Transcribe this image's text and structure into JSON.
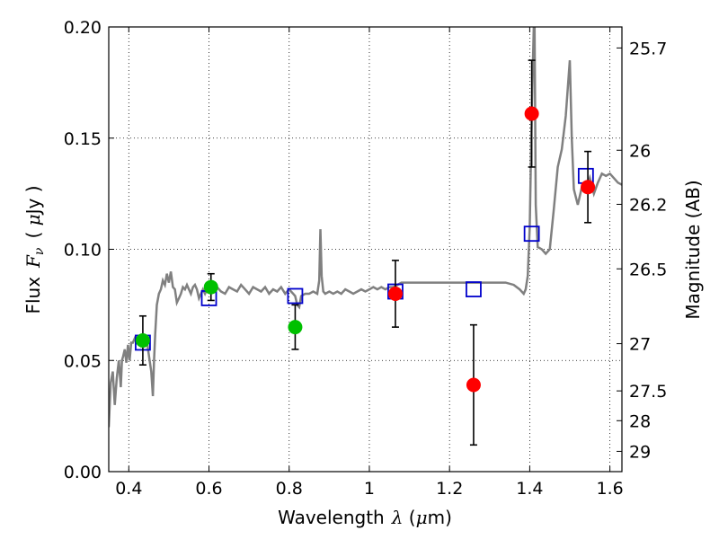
{
  "chart_data": {
    "type": "scatter",
    "title": "",
    "xlabel": {
      "prefix": "Wavelength",
      "symbol": "λ",
      "unit_open": " (",
      "unit_mu": "μ",
      "unit_rest": "m)"
    },
    "ylabel": {
      "prefix": "Flux",
      "symbol": "F",
      "sub": "ν",
      "unit_open": "( ",
      "unit_mu": "μ",
      "unit_rest": "Jy )"
    },
    "y2label": "Magnitude (AB)",
    "xlim": [
      0.35,
      1.63
    ],
    "ylim": [
      0.0,
      0.2
    ],
    "grid": true,
    "grid_style": "dotted",
    "x_ticks": [
      {
        "value": 0.4,
        "label": "0.4"
      },
      {
        "value": 0.6,
        "label": "0.6"
      },
      {
        "value": 0.8,
        "label": "0.8"
      },
      {
        "value": 1.0,
        "label": "1"
      },
      {
        "value": 1.2,
        "label": "1.2"
      },
      {
        "value": 1.4,
        "label": "1.4"
      },
      {
        "value": 1.6,
        "label": "1.6"
      }
    ],
    "y_ticks": [
      {
        "value": 0.0,
        "label": "0.00"
      },
      {
        "value": 0.05,
        "label": "0.05"
      },
      {
        "value": 0.1,
        "label": "0.10"
      },
      {
        "value": 0.15,
        "label": "0.15"
      },
      {
        "value": 0.2,
        "label": "0.20"
      }
    ],
    "y2_ticks": [
      {
        "mag": 25.7,
        "label": "25.7"
      },
      {
        "mag": 26.0,
        "label": "26"
      },
      {
        "mag": 26.2,
        "label": "26.2"
      },
      {
        "mag": 26.5,
        "label": "26.5"
      },
      {
        "mag": 27.0,
        "label": "27"
      },
      {
        "mag": 27.5,
        "label": "27.5"
      },
      {
        "mag": 28.0,
        "label": "28"
      },
      {
        "mag": 29.0,
        "label": "29"
      }
    ],
    "colors": {
      "model_line": "#808080",
      "model_squares": "#0000cc",
      "green_points": "#00c000",
      "red_points": "#ff0000",
      "error_bars": "#000000"
    },
    "series": [
      {
        "kind": "line",
        "points": [
          [
            0.35,
            0.02
          ],
          [
            0.355,
            0.04
          ],
          [
            0.36,
            0.045
          ],
          [
            0.365,
            0.03
          ],
          [
            0.37,
            0.042
          ],
          [
            0.375,
            0.05
          ],
          [
            0.38,
            0.038
          ],
          [
            0.383,
            0.05
          ],
          [
            0.386,
            0.052
          ],
          [
            0.39,
            0.055
          ],
          [
            0.394,
            0.049
          ],
          [
            0.398,
            0.057
          ],
          [
            0.402,
            0.05
          ],
          [
            0.406,
            0.058
          ],
          [
            0.41,
            0.058
          ],
          [
            0.415,
            0.06
          ],
          [
            0.42,
            0.058
          ],
          [
            0.425,
            0.059
          ],
          [
            0.43,
            0.057
          ],
          [
            0.435,
            0.06
          ],
          [
            0.44,
            0.056
          ],
          [
            0.445,
            0.06
          ],
          [
            0.448,
            0.055
          ],
          [
            0.452,
            0.05
          ],
          [
            0.456,
            0.045
          ],
          [
            0.46,
            0.034
          ],
          [
            0.463,
            0.05
          ],
          [
            0.466,
            0.062
          ],
          [
            0.47,
            0.075
          ],
          [
            0.475,
            0.08
          ],
          [
            0.48,
            0.082
          ],
          [
            0.485,
            0.086
          ],
          [
            0.49,
            0.084
          ],
          [
            0.495,
            0.089
          ],
          [
            0.5,
            0.085
          ],
          [
            0.505,
            0.09
          ],
          [
            0.51,
            0.083
          ],
          [
            0.515,
            0.082
          ],
          [
            0.52,
            0.076
          ],
          [
            0.525,
            0.078
          ],
          [
            0.53,
            0.08
          ],
          [
            0.535,
            0.083
          ],
          [
            0.54,
            0.082
          ],
          [
            0.545,
            0.084
          ],
          [
            0.55,
            0.082
          ],
          [
            0.555,
            0.08
          ],
          [
            0.56,
            0.083
          ],
          [
            0.565,
            0.084
          ],
          [
            0.57,
            0.082
          ],
          [
            0.575,
            0.078
          ],
          [
            0.58,
            0.08
          ],
          [
            0.585,
            0.082
          ],
          [
            0.59,
            0.08
          ],
          [
            0.595,
            0.082
          ],
          [
            0.6,
            0.081
          ],
          [
            0.61,
            0.082
          ],
          [
            0.62,
            0.083
          ],
          [
            0.63,
            0.081
          ],
          [
            0.64,
            0.08
          ],
          [
            0.65,
            0.083
          ],
          [
            0.66,
            0.082
          ],
          [
            0.67,
            0.081
          ],
          [
            0.68,
            0.084
          ],
          [
            0.69,
            0.082
          ],
          [
            0.7,
            0.08
          ],
          [
            0.71,
            0.083
          ],
          [
            0.72,
            0.082
          ],
          [
            0.73,
            0.081
          ],
          [
            0.74,
            0.083
          ],
          [
            0.75,
            0.08
          ],
          [
            0.76,
            0.082
          ],
          [
            0.77,
            0.081
          ],
          [
            0.78,
            0.083
          ],
          [
            0.79,
            0.08
          ],
          [
            0.8,
            0.082
          ],
          [
            0.81,
            0.08
          ],
          [
            0.815,
            0.079
          ],
          [
            0.82,
            0.075
          ],
          [
            0.825,
            0.074
          ],
          [
            0.83,
            0.079
          ],
          [
            0.84,
            0.08
          ],
          [
            0.85,
            0.08
          ],
          [
            0.86,
            0.081
          ],
          [
            0.87,
            0.08
          ],
          [
            0.875,
            0.086
          ],
          [
            0.878,
            0.109
          ],
          [
            0.881,
            0.088
          ],
          [
            0.885,
            0.081
          ],
          [
            0.89,
            0.08
          ],
          [
            0.9,
            0.081
          ],
          [
            0.91,
            0.08
          ],
          [
            0.92,
            0.081
          ],
          [
            0.93,
            0.08
          ],
          [
            0.94,
            0.082
          ],
          [
            0.95,
            0.081
          ],
          [
            0.96,
            0.08
          ],
          [
            0.97,
            0.081
          ],
          [
            0.98,
            0.082
          ],
          [
            0.99,
            0.081
          ],
          [
            1.0,
            0.082
          ],
          [
            1.01,
            0.083
          ],
          [
            1.02,
            0.082
          ],
          [
            1.03,
            0.083
          ],
          [
            1.04,
            0.082
          ],
          [
            1.05,
            0.083
          ],
          [
            1.06,
            0.083
          ],
          [
            1.07,
            0.084
          ],
          [
            1.08,
            0.085
          ],
          [
            1.09,
            0.085
          ],
          [
            1.1,
            0.085
          ],
          [
            1.12,
            0.085
          ],
          [
            1.14,
            0.085
          ],
          [
            1.16,
            0.085
          ],
          [
            1.18,
            0.085
          ],
          [
            1.2,
            0.085
          ],
          [
            1.22,
            0.085
          ],
          [
            1.24,
            0.085
          ],
          [
            1.26,
            0.085
          ],
          [
            1.28,
            0.085
          ],
          [
            1.3,
            0.085
          ],
          [
            1.32,
            0.085
          ],
          [
            1.34,
            0.085
          ],
          [
            1.36,
            0.084
          ],
          [
            1.375,
            0.082
          ],
          [
            1.385,
            0.08
          ],
          [
            1.39,
            0.082
          ],
          [
            1.395,
            0.088
          ],
          [
            1.4,
            0.11
          ],
          [
            1.405,
            0.16
          ],
          [
            1.41,
            0.2
          ],
          [
            1.412,
            0.2
          ],
          [
            1.415,
            0.12
          ],
          [
            1.42,
            0.101
          ],
          [
            1.43,
            0.1
          ],
          [
            1.44,
            0.098
          ],
          [
            1.45,
            0.1
          ],
          [
            1.46,
            0.118
          ],
          [
            1.47,
            0.137
          ],
          [
            1.48,
            0.145
          ],
          [
            1.49,
            0.16
          ],
          [
            1.5,
            0.185
          ],
          [
            1.505,
            0.15
          ],
          [
            1.51,
            0.127
          ],
          [
            1.52,
            0.12
          ],
          [
            1.53,
            0.128
          ],
          [
            1.54,
            0.126
          ],
          [
            1.55,
            0.132
          ],
          [
            1.56,
            0.125
          ],
          [
            1.57,
            0.13
          ],
          [
            1.58,
            0.134
          ],
          [
            1.59,
            0.133
          ],
          [
            1.6,
            0.134
          ],
          [
            1.61,
            0.132
          ],
          [
            1.62,
            0.13
          ],
          [
            1.63,
            0.129
          ]
        ]
      },
      {
        "kind": "squares",
        "points": [
          [
            0.435,
            0.058
          ],
          [
            0.6,
            0.078
          ],
          [
            0.815,
            0.079
          ],
          [
            1.065,
            0.081
          ],
          [
            1.26,
            0.082
          ],
          [
            1.405,
            0.107
          ],
          [
            1.54,
            0.133
          ]
        ]
      },
      {
        "kind": "points",
        "color_key": "green_points",
        "points": [
          {
            "x": 0.435,
            "y": 0.059,
            "err": 0.011
          },
          {
            "x": 0.605,
            "y": 0.083,
            "err": 0.006
          },
          {
            "x": 0.815,
            "y": 0.065,
            "err": 0.01
          }
        ]
      },
      {
        "kind": "points",
        "color_key": "red_points",
        "points": [
          {
            "x": 1.065,
            "y": 0.08,
            "err": 0.015
          },
          {
            "x": 1.26,
            "y": 0.039,
            "err": 0.027
          },
          {
            "x": 1.405,
            "y": 0.161,
            "err": 0.024
          },
          {
            "x": 1.545,
            "y": 0.128,
            "err": 0.016
          }
        ]
      }
    ]
  }
}
